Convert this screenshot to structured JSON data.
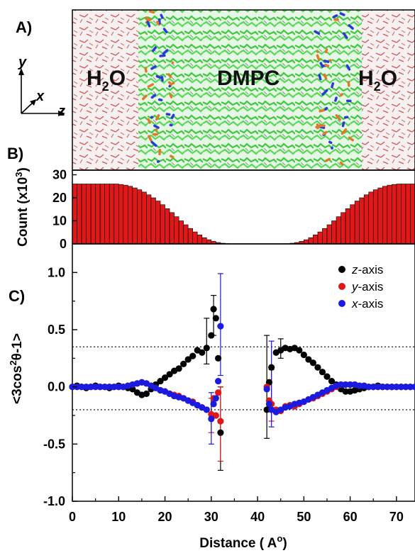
{
  "panels": {
    "a": "A)",
    "b": "B)",
    "c": "C)"
  },
  "simulation": {
    "left_region": "H",
    "left_region_sub": "2",
    "left_region_tail": "O",
    "center_region": "DMPC",
    "right_region": "H",
    "right_region_sub": "2",
    "right_region_tail": "O",
    "axes": {
      "y": "y",
      "x": "x",
      "z": "z"
    },
    "colors": {
      "water_bg": "#f3eeee",
      "water_bond_red": "#d06060",
      "water_bond_white": "#ffffff",
      "lipid_green": "#4fd24f",
      "headgroup_orange": "#e07a2a",
      "nitrogen_blue": "#2a3ad8"
    }
  },
  "chart_data": [
    {
      "type": "bar",
      "ylabel": "Count (x10",
      "ylabel_sup": "3",
      "ylabel_tail": ")",
      "bar_color": "#e01818",
      "ylim": [
        0,
        32
      ],
      "yticks": [
        "0",
        "10",
        "20",
        "30"
      ],
      "x_start": 0,
      "bin_width": 1,
      "values": [
        26,
        26,
        26,
        26,
        26,
        26,
        26,
        26,
        26,
        26,
        25.8,
        25.5,
        25,
        24.3,
        23.5,
        22.5,
        21.3,
        20,
        18.6,
        17,
        15.3,
        13.6,
        11.8,
        10,
        8.3,
        6.7,
        5.2,
        3.9,
        2.7,
        1.8,
        1.1,
        0.6,
        0.3,
        0.1,
        0.05,
        0,
        0,
        0,
        0,
        0,
        0,
        0,
        0,
        0,
        0,
        0.05,
        0.1,
        0.3,
        0.6,
        1.1,
        1.8,
        2.7,
        3.9,
        5.2,
        6.7,
        8.3,
        10,
        11.8,
        13.6,
        15.3,
        17,
        18.6,
        20,
        21.3,
        22.5,
        23.5,
        24.3,
        25,
        25.5,
        25.8,
        26,
        26,
        26,
        26,
        26
      ]
    },
    {
      "type": "scatter",
      "xlabel": "Distance ( A",
      "xlabel_sup": "o",
      "xlabel_tail": ")",
      "ylabel": "<3cos",
      "ylabel_sup": "2",
      "ylabel_tail": "θ-1>",
      "xlim": [
        0,
        74
      ],
      "ylim": [
        -1.0,
        1.25
      ],
      "xticks": [
        "0",
        "10",
        "20",
        "30",
        "40",
        "50",
        "60",
        "70"
      ],
      "yticks": [
        "-1.0",
        "-0.5",
        "0.0",
        "0.5",
        "1.0"
      ],
      "reference_lines": [
        0.35,
        -0.2
      ],
      "legend_position": "top-right",
      "series": [
        {
          "name": "z-axis",
          "color": "#000000",
          "points": [
            [
              0,
              0
            ],
            [
              1,
              0.01
            ],
            [
              2,
              0
            ],
            [
              3,
              -0.01
            ],
            [
              4,
              0
            ],
            [
              5,
              0.01
            ],
            [
              6,
              0
            ],
            [
              7,
              0
            ],
            [
              8,
              -0.01
            ],
            [
              9,
              0
            ],
            [
              10,
              0.01
            ],
            [
              11,
              0
            ],
            [
              12,
              -0.01
            ],
            [
              13,
              -0.02
            ],
            [
              14,
              -0.05
            ],
            [
              15,
              -0.07
            ],
            [
              16,
              -0.06
            ],
            [
              17,
              -0.02
            ],
            [
              18,
              0.02
            ],
            [
              19,
              0.05
            ],
            [
              20,
              0.08
            ],
            [
              21,
              0.11
            ],
            [
              22,
              0.14
            ],
            [
              23,
              0.16
            ],
            [
              24,
              0.2
            ],
            [
              25,
              0.24
            ],
            [
              26,
              0.27
            ],
            [
              27,
              0.32
            ],
            [
              28,
              0.3
            ],
            [
              29,
              0.34
            ],
            [
              30,
              0.45
            ],
            [
              30.5,
              0.68
            ],
            [
              31,
              0.6
            ],
            [
              31.5,
              0.25
            ],
            [
              32,
              -0.4
            ],
            [
              42,
              -0.2
            ],
            [
              42.5,
              0.04
            ],
            [
              43,
              0.17
            ],
            [
              44,
              0.3
            ],
            [
              45,
              0.32
            ],
            [
              46,
              0.34
            ],
            [
              47,
              0.33
            ],
            [
              48,
              0.34
            ],
            [
              49,
              0.32
            ],
            [
              50,
              0.28
            ],
            [
              51,
              0.24
            ],
            [
              52,
              0.21
            ],
            [
              53,
              0.17
            ],
            [
              54,
              0.13
            ],
            [
              55,
              0.09
            ],
            [
              56,
              0.05
            ],
            [
              57,
              0.02
            ],
            [
              58,
              -0.02
            ],
            [
              59,
              -0.04
            ],
            [
              60,
              -0.04
            ],
            [
              61,
              -0.03
            ],
            [
              62,
              -0.02
            ],
            [
              63,
              -0.01
            ],
            [
              64,
              0
            ],
            [
              65,
              0
            ],
            [
              66,
              0.01
            ],
            [
              67,
              0
            ],
            [
              68,
              0
            ],
            [
              69,
              0
            ],
            [
              70,
              0
            ],
            [
              71,
              0
            ],
            [
              72,
              0
            ],
            [
              73,
              0
            ],
            [
              74,
              0
            ]
          ]
        },
        {
          "name": "y-axis",
          "color": "#e01818",
          "points": [
            [
              0,
              0
            ],
            [
              1,
              0
            ],
            [
              2,
              0
            ],
            [
              3,
              0
            ],
            [
              4,
              0
            ],
            [
              5,
              0
            ],
            [
              6,
              0
            ],
            [
              7,
              0
            ],
            [
              8,
              0
            ],
            [
              9,
              0
            ],
            [
              10,
              0
            ],
            [
              11,
              0
            ],
            [
              12,
              0.01
            ],
            [
              13,
              0.02
            ],
            [
              14,
              0.03
            ],
            [
              15,
              0.04
            ],
            [
              16,
              0.03
            ],
            [
              17,
              0.01
            ],
            [
              18,
              -0.01
            ],
            [
              19,
              -0.03
            ],
            [
              20,
              -0.04
            ],
            [
              21,
              -0.06
            ],
            [
              22,
              -0.07
            ],
            [
              23,
              -0.08
            ],
            [
              24,
              -0.1
            ],
            [
              25,
              -0.12
            ],
            [
              26,
              -0.13
            ],
            [
              27,
              -0.16
            ],
            [
              28,
              -0.18
            ],
            [
              29,
              -0.2
            ],
            [
              30,
              -0.24
            ],
            [
              30.5,
              -0.1
            ],
            [
              31,
              -0.25
            ],
            [
              31.5,
              -0.05
            ],
            [
              32,
              -0.3
            ],
            [
              42,
              0
            ],
            [
              42.5,
              -0.12
            ],
            [
              43,
              -0.15
            ],
            [
              44,
              -0.2
            ],
            [
              45,
              -0.21
            ],
            [
              46,
              -0.17
            ],
            [
              47,
              -0.16
            ],
            [
              48,
              -0.17
            ],
            [
              49,
              -0.15
            ],
            [
              50,
              -0.13
            ],
            [
              51,
              -0.11
            ],
            [
              52,
              -0.1
            ],
            [
              53,
              -0.08
            ],
            [
              54,
              -0.06
            ],
            [
              55,
              -0.04
            ],
            [
              56,
              -0.02
            ],
            [
              57,
              0
            ],
            [
              58,
              0.02
            ],
            [
              59,
              0.02
            ],
            [
              60,
              0.02
            ],
            [
              61,
              0.02
            ],
            [
              62,
              0.01
            ],
            [
              63,
              0.01
            ],
            [
              64,
              0
            ],
            [
              65,
              0
            ],
            [
              66,
              0
            ],
            [
              67,
              0
            ],
            [
              68,
              0
            ],
            [
              69,
              0
            ],
            [
              70,
              0
            ],
            [
              71,
              0
            ],
            [
              72,
              0
            ],
            [
              73,
              0
            ],
            [
              74,
              0
            ]
          ]
        },
        {
          "name": "x-axis",
          "color": "#1a1ae0",
          "points": [
            [
              0,
              0
            ],
            [
              1,
              0
            ],
            [
              2,
              0
            ],
            [
              3,
              0
            ],
            [
              4,
              0
            ],
            [
              5,
              0
            ],
            [
              6,
              0
            ],
            [
              7,
              0
            ],
            [
              8,
              0
            ],
            [
              9,
              0
            ],
            [
              10,
              0
            ],
            [
              11,
              0
            ],
            [
              12,
              0.01
            ],
            [
              13,
              0.02
            ],
            [
              14,
              0.03
            ],
            [
              15,
              0.04
            ],
            [
              16,
              0.03
            ],
            [
              17,
              0.01
            ],
            [
              18,
              -0.01
            ],
            [
              19,
              -0.03
            ],
            [
              20,
              -0.04
            ],
            [
              21,
              -0.06
            ],
            [
              22,
              -0.08
            ],
            [
              23,
              -0.09
            ],
            [
              24,
              -0.1
            ],
            [
              25,
              -0.12
            ],
            [
              26,
              -0.14
            ],
            [
              27,
              -0.16
            ],
            [
              28,
              -0.18
            ],
            [
              29,
              -0.2
            ],
            [
              30,
              -0.28
            ],
            [
              30.5,
              -0.15
            ],
            [
              31,
              -0.1
            ],
            [
              31.5,
              0.05
            ],
            [
              32,
              0.53
            ],
            [
              42,
              -0.02
            ],
            [
              42.5,
              -0.15
            ],
            [
              43,
              -0.2
            ],
            [
              44,
              -0.22
            ],
            [
              45,
              -0.2
            ],
            [
              46,
              -0.18
            ],
            [
              47,
              -0.17
            ],
            [
              48,
              -0.15
            ],
            [
              49,
              -0.14
            ],
            [
              50,
              -0.13
            ],
            [
              51,
              -0.11
            ],
            [
              52,
              -0.09
            ],
            [
              53,
              -0.07
            ],
            [
              54,
              -0.05
            ],
            [
              55,
              -0.03
            ],
            [
              56,
              -0.01
            ],
            [
              57,
              0.01
            ],
            [
              58,
              0.02
            ],
            [
              59,
              0.02
            ],
            [
              60,
              0.02
            ],
            [
              61,
              0.02
            ],
            [
              62,
              0.01
            ],
            [
              63,
              0.01
            ],
            [
              64,
              0
            ],
            [
              65,
              0
            ],
            [
              66,
              0
            ],
            [
              67,
              0
            ],
            [
              68,
              0
            ],
            [
              69,
              0
            ],
            [
              70,
              0
            ],
            [
              71,
              0
            ],
            [
              72,
              0
            ],
            [
              73,
              0
            ],
            [
              74,
              0
            ]
          ]
        }
      ],
      "error_bars": [
        {
          "series": "z-axis",
          "x": 29,
          "low": 0.2,
          "high": 0.6
        },
        {
          "series": "z-axis",
          "x": 30.5,
          "low": 0.45,
          "high": 0.8
        },
        {
          "series": "z-axis",
          "x": 32,
          "low": -0.73,
          "high": 0.0
        },
        {
          "series": "z-axis",
          "x": 42,
          "low": -0.45,
          "high": 0.45
        },
        {
          "series": "z-axis",
          "x": 45,
          "low": 0.25,
          "high": 0.42
        },
        {
          "series": "y-axis",
          "x": 30,
          "low": -0.4,
          "high": -0.1
        },
        {
          "series": "y-axis",
          "x": 32,
          "low": -0.65,
          "high": 0.0
        },
        {
          "series": "y-axis",
          "x": 43,
          "low": -0.3,
          "high": 0.15
        },
        {
          "series": "x-axis",
          "x": 30,
          "low": -0.5,
          "high": -0.05
        },
        {
          "series": "x-axis",
          "x": 32,
          "low": 0.1,
          "high": 0.99
        },
        {
          "series": "x-axis",
          "x": 43,
          "low": -0.35,
          "high": 0.4
        }
      ]
    }
  ]
}
